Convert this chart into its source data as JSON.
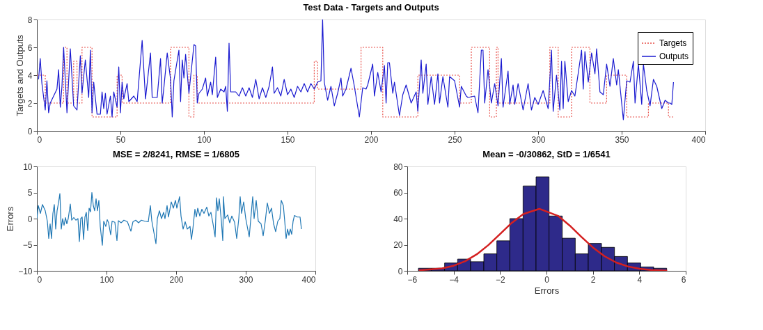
{
  "chart_data": [
    {
      "type": "line",
      "title": "Test Data - Targets and Outputs",
      "ylabel": "Targets and Outputs",
      "xlim": [
        0,
        400
      ],
      "xticks": [
        0,
        50,
        100,
        150,
        200,
        250,
        300,
        350,
        400
      ],
      "ylim": [
        0,
        8
      ],
      "yticks": [
        0,
        2,
        4,
        6,
        8
      ],
      "legend": "top right",
      "series": [
        {
          "name": "Targets",
          "type": "step",
          "line_style": "dotted",
          "color": "#e8504a",
          "x": [
            0,
            5,
            16,
            18,
            22,
            24,
            27,
            33,
            48,
            51,
            80,
            91,
            94,
            96,
            166,
            168,
            194,
            207,
            228,
            253,
            260,
            271,
            275,
            276,
            307,
            312,
            320,
            331,
            341,
            353,
            366,
            378,
            381
          ],
          "values": [
            4,
            2,
            6,
            2,
            5,
            2,
            6,
            1,
            4,
            2,
            6,
            1,
            4,
            2,
            5,
            3,
            6,
            1,
            4,
            2,
            6,
            1,
            6,
            2,
            6,
            1,
            6,
            2,
            4,
            1,
            2,
            1,
            1
          ]
        },
        {
          "name": "Outputs",
          "type": "line",
          "line_style": "solid",
          "color": "#1a1ad0",
          "x": [
            1,
            2,
            3,
            5,
            6,
            7,
            8,
            10,
            12,
            13,
            14,
            15,
            16,
            18,
            20,
            22,
            24,
            26,
            27,
            29,
            31,
            32,
            33,
            34,
            36,
            38,
            39,
            40,
            41,
            42,
            44,
            45,
            46,
            48,
            49,
            50,
            51,
            52,
            54,
            55,
            58,
            60,
            63,
            65,
            68,
            69,
            72,
            74,
            75,
            76,
            78,
            80,
            81,
            82,
            85,
            86,
            87,
            88,
            89,
            91,
            94,
            95,
            96,
            97,
            99,
            101,
            102,
            104,
            105,
            107,
            108,
            110,
            112,
            113,
            114,
            115,
            116,
            119,
            121,
            123,
            125,
            127,
            129,
            131,
            133,
            135,
            137,
            139,
            141,
            142,
            144,
            146,
            148,
            150,
            152,
            154,
            156,
            158,
            160,
            162,
            164,
            166,
            168,
            170,
            171,
            172,
            174,
            176,
            178,
            180,
            182,
            183,
            185,
            188,
            190,
            193,
            195,
            197,
            198,
            201,
            202,
            204,
            206,
            208,
            209,
            210,
            211,
            213,
            214,
            217,
            219,
            221,
            224,
            227,
            228,
            230,
            231,
            233,
            234,
            236,
            238,
            240,
            241,
            243,
            246,
            247,
            250,
            253,
            254,
            257,
            258,
            262,
            264,
            266,
            267,
            268,
            270,
            272,
            274,
            276,
            278,
            279,
            282,
            283,
            285,
            286,
            288,
            291,
            294,
            296,
            298,
            300,
            303,
            306,
            308,
            309,
            311,
            313,
            314,
            315,
            316,
            318,
            320,
            322,
            326,
            327,
            328,
            330,
            332,
            334,
            335,
            337,
            339,
            341,
            343,
            345,
            347,
            348,
            351,
            353,
            355,
            357,
            358,
            360,
            362,
            363,
            365,
            367,
            369,
            371,
            374,
            376,
            378,
            379,
            380,
            381
          ],
          "values": [
            3.7,
            5.2,
            3.4,
            1.5,
            3.6,
            1.3,
            2,
            2.5,
            3,
            4.4,
            1.7,
            3.2,
            6,
            1.3,
            5.9,
            1.8,
            1.5,
            5.4,
            2.7,
            5.1,
            2.4,
            5.8,
            1.3,
            3.5,
            1.2,
            1.2,
            2.8,
            1.6,
            2.7,
            1.2,
            2.5,
            1,
            2.8,
            1.7,
            4.6,
            1.3,
            3.5,
            2.3,
            3.4,
            2.1,
            2.5,
            2.1,
            6.5,
            2.3,
            5.6,
            2.4,
            2.4,
            5.2,
            2,
            3.1,
            5.6,
            3.7,
            1,
            3.6,
            5.8,
            2.1,
            5.1,
            3.8,
            5.5,
            2.7,
            6.2,
            6.1,
            2,
            2.7,
            3,
            3.8,
            2.5,
            3.5,
            2.6,
            5.3,
            2.4,
            3,
            2.8,
            3.2,
            1.4,
            6.3,
            2.8,
            2.8,
            2.5,
            3.1,
            2.5,
            3.1,
            2.4,
            3.7,
            2.3,
            3.1,
            2.4,
            3.2,
            4.6,
            2.7,
            3.1,
            2.5,
            3.7,
            2.6,
            3,
            2.4,
            3.2,
            2.8,
            3.4,
            2.8,
            3.4,
            3,
            3.5,
            3.6,
            8,
            3.5,
            2.2,
            3.2,
            1.8,
            2.7,
            3.8,
            2.5,
            3,
            4.5,
            3.2,
            1,
            3.1,
            3,
            3.3,
            4.8,
            2.5,
            4.2,
            2.8,
            4.7,
            2,
            4.9,
            4.9,
            2.7,
            3.5,
            1.1,
            2.6,
            3.3,
            2,
            2.8,
            1.4,
            5.1,
            2.7,
            4.8,
            1.9,
            3.9,
            1.9,
            4.1,
            2,
            3.9,
            1.7,
            3.9,
            3.6,
            1.7,
            3.2,
            2.5,
            2.4,
            2.5,
            1.3,
            5.8,
            5.8,
            2,
            4.4,
            2,
            3.4,
            1.8,
            5.2,
            1.7,
            4.3,
            1.9,
            3.3,
            1.9,
            3.4,
            1.5,
            3.4,
            1.5,
            2.4,
            1.9,
            2.9,
            1.6,
            5.8,
            1.4,
            4,
            1.5,
            5,
            1.6,
            5,
            2.1,
            2.9,
            2.5,
            5.8,
            3,
            5.7,
            3.5,
            5.6,
            4.1,
            5.9,
            2.8,
            2.6,
            4.8,
            3.2,
            5.2,
            3.3,
            4.4,
            0.8,
            3.6,
            3.5,
            5,
            2,
            4.8,
            1.9,
            4.8,
            2.9,
            1.8,
            3.7,
            3.2,
            1.6,
            2.2,
            2,
            2,
            1.9,
            3.5
          ]
        }
      ]
    },
    {
      "type": "line",
      "title": "MSE = 2/8241, RMSE = 1/6805",
      "ylabel": "Errors",
      "xlim": [
        0,
        400
      ],
      "xticks": [
        0,
        100,
        200,
        300,
        400
      ],
      "ylim": [
        -10,
        10
      ],
      "yticks": [
        -10,
        -5,
        0,
        5,
        10
      ],
      "series": [
        {
          "color": "#1f77b4",
          "x": [
            0,
            2,
            5,
            8,
            12,
            15,
            17,
            19,
            21,
            23,
            25,
            27,
            29,
            31,
            33,
            35,
            37,
            39,
            41,
            43,
            45,
            48,
            50,
            53,
            56,
            59,
            61,
            63,
            65,
            67,
            69,
            71,
            73,
            75,
            77,
            79,
            81,
            83,
            85,
            87,
            89,
            91,
            94,
            96,
            99,
            101,
            103,
            106,
            108,
            112,
            115,
            117,
            121,
            125,
            130,
            135,
            138,
            142,
            146,
            150,
            155,
            160,
            163,
            165,
            171,
            173,
            176,
            179,
            182,
            184,
            187,
            189,
            193,
            196,
            199,
            201,
            205,
            207,
            210,
            213,
            216,
            220,
            222,
            224,
            227,
            229,
            231,
            234,
            237,
            240,
            244,
            247,
            250,
            253,
            256,
            258,
            260,
            262,
            265,
            267,
            268,
            270,
            274,
            277,
            280,
            284,
            287,
            290,
            292,
            294,
            297,
            300,
            305,
            310,
            312,
            315,
            318,
            322,
            325,
            328,
            331,
            334,
            337,
            340,
            343,
            346,
            349,
            351,
            354,
            356,
            358,
            360,
            362,
            364,
            366,
            368,
            370,
            374,
            378,
            380
          ],
          "values": [
            0,
            2.5,
            1,
            2.7,
            1.5,
            -0.5,
            -3.8,
            -1,
            -3.8,
            1,
            2.7,
            -2,
            1.5,
            3,
            4.8,
            -2,
            0,
            -1.3,
            0.2,
            -1,
            0,
            2.8,
            -0.3,
            0.2,
            -0.3,
            0,
            -4.4,
            0,
            0.3,
            -4,
            0.3,
            1.2,
            -2.3,
            2,
            1.3,
            5,
            2.5,
            1.5,
            3.8,
            1.5,
            3.5,
            -1.5,
            -5.1,
            -0.5,
            -1.5,
            -0.2,
            -0.8,
            -3.1,
            -0.5,
            -0.7,
            -4.2,
            -0.4,
            -0.8,
            -0.3,
            -0.6,
            -2.4,
            -0.6,
            -0.3,
            -0.8,
            -0.3,
            -0.5,
            -0.6,
            2.5,
            -0.4,
            -4.8,
            0,
            1.5,
            0,
            1.2,
            0,
            2.5,
            0.3,
            3.2,
            2,
            3.5,
            2,
            4.2,
            0.5,
            -2,
            -0.6,
            -2,
            -1.5,
            -4,
            -2,
            1.8,
            0.3,
            2,
            0.5,
            1.8,
            1,
            2.2,
            0.5,
            1.2,
            -1,
            -3.5,
            4,
            1.5,
            3.8,
            -0.5,
            -4.2,
            4.2,
            0,
            0.7,
            -0.8,
            0.5,
            -0.7,
            -3.8,
            0,
            4.2,
            1,
            3.2,
            0,
            -3.5,
            4.2,
            0,
            3.5,
            -0.5,
            -1,
            -3.3,
            -0.5,
            3,
            1,
            2,
            -1,
            -2.5,
            -0.5,
            0,
            3.5,
            2.5,
            -0.5,
            -3.8,
            -2,
            -3.2,
            -2,
            -3,
            -0.5,
            0.6,
            0.3,
            0.3,
            -2
          ]
        }
      ]
    },
    {
      "type": "histogram",
      "title": "Mean = -0/30862, StD = 1/6541",
      "xlabel": "Errors",
      "xlim": [
        -6,
        6
      ],
      "xticks": [
        -6,
        -4,
        -2,
        0,
        2,
        4,
        6
      ],
      "ylim": [
        0,
        80
      ],
      "yticks": [
        0,
        20,
        40,
        60,
        80
      ],
      "color": "#2e2a8a",
      "bins": [
        -5.52,
        -4.96,
        -4.39,
        -3.83,
        -3.27,
        -2.7,
        -2.14,
        -1.58,
        -1.01,
        -0.45,
        0.11,
        0.68,
        1.24,
        1.8,
        2.37,
        2.93,
        3.49,
        4.06,
        4.62,
        5.18
      ],
      "values": [
        2,
        2,
        6,
        9,
        7,
        13,
        23,
        40,
        65,
        72,
        42,
        25,
        13,
        21,
        18,
        11,
        6,
        3,
        2
      ],
      "series": [
        {
          "type": "line",
          "color": "#d42020",
          "x": [
            -5.5,
            -4.5,
            -4,
            -3.5,
            -3,
            -2.5,
            -2,
            -1.5,
            -1,
            -0.31,
            0.5,
            1,
            1.5,
            2,
            2.5,
            3,
            3.5,
            4,
            4.5,
            5.2
          ],
          "values": [
            0.4,
            1.9,
            3.9,
            7.4,
            12.7,
            19.8,
            28.2,
            36.7,
            43.5,
            47.5,
            42.1,
            34.7,
            26.1,
            17.9,
            11.2,
            6.4,
            3.4,
            1.6,
            0.7,
            0.2
          ]
        }
      ]
    }
  ]
}
